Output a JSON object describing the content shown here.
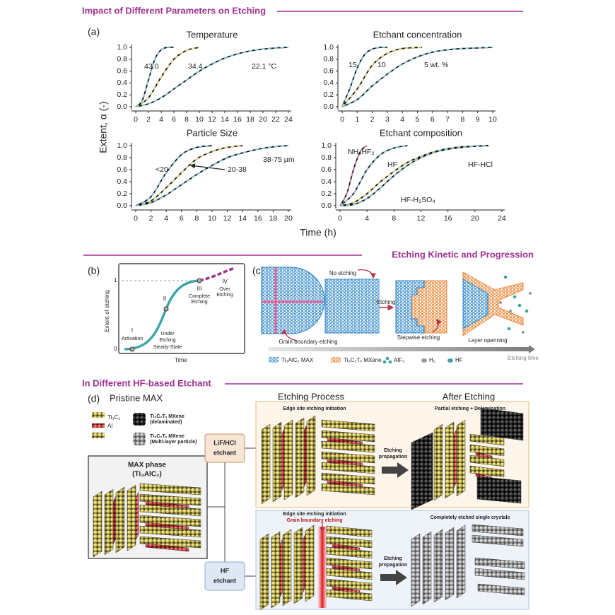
{
  "sections": {
    "top": "Impact of Different Parameters on Etching",
    "middle": "Etching Kinetic and Progression",
    "bottom": "In Different HF-based Etchant"
  },
  "panel_a": {
    "label": "(a)",
    "y_label": "Extent, α (-)",
    "x_label": "Time (h)"
  },
  "chart_data": [
    {
      "type": "line",
      "title": "Temperature",
      "xlim": [
        0,
        24
      ],
      "ylim": [
        0,
        1
      ],
      "xticks": [
        0,
        2,
        4,
        6,
        8,
        10,
        12,
        14,
        16,
        18,
        20,
        22,
        24
      ],
      "yticks": [
        {
          "value": 0,
          "label": "0.0"
        },
        {
          "value": 0.2,
          "label": "0.2"
        },
        {
          "value": 0.4,
          "label": "0.4"
        },
        {
          "value": 0.6,
          "label": "0.6"
        },
        {
          "value": 0.8,
          "label": "0.8"
        },
        {
          "value": 1,
          "label": "1.0"
        }
      ],
      "series": [
        {
          "name": "43.0",
          "color": "#7fd3e0",
          "x": [
            0,
            1,
            2,
            3,
            4,
            5,
            6
          ],
          "values": [
            0,
            0.1,
            0.45,
            0.8,
            0.96,
            1.0,
            1.0
          ]
        },
        {
          "name": "34.4",
          "color": "#f0e27a",
          "x": [
            0,
            2,
            4,
            6,
            8,
            10
          ],
          "values": [
            0,
            0.15,
            0.5,
            0.8,
            0.95,
            1.0
          ]
        },
        {
          "name": "22.1 °C",
          "color": "#7fd3e0",
          "x": [
            0,
            2,
            4,
            6,
            8,
            10,
            12,
            14,
            16,
            18,
            20,
            22,
            24
          ],
          "values": [
            0,
            0.05,
            0.15,
            0.3,
            0.45,
            0.6,
            0.72,
            0.82,
            0.89,
            0.94,
            0.97,
            0.99,
            1.0
          ]
        }
      ]
    },
    {
      "type": "line",
      "title": "Etchant concentration",
      "xlim": [
        0,
        10
      ],
      "ylim": [
        0,
        1
      ],
      "xticks": [
        0,
        1,
        2,
        3,
        4,
        5,
        6,
        7,
        8,
        9,
        10
      ],
      "yticks": [
        {
          "value": 0,
          "label": "0.0"
        },
        {
          "value": 0.2,
          "label": "0.2"
        },
        {
          "value": 0.4,
          "label": "0.4"
        },
        {
          "value": 0.6,
          "label": "0.6"
        },
        {
          "value": 0.8,
          "label": "0.8"
        },
        {
          "value": 1,
          "label": "1.0"
        }
      ],
      "series": [
        {
          "name": "15",
          "color": "#7fd3e0",
          "x": [
            0,
            0.5,
            1,
            1.5,
            2,
            2.5,
            3
          ],
          "values": [
            0,
            0.3,
            0.65,
            0.88,
            0.97,
            1.0,
            1.0
          ]
        },
        {
          "name": "10",
          "color": "#f0e27a",
          "x": [
            0,
            1,
            2,
            3,
            4,
            5.3
          ],
          "values": [
            0,
            0.3,
            0.7,
            0.9,
            0.98,
            1.0
          ]
        },
        {
          "name": "5 wt. %",
          "color": "#7fd3e0",
          "x": [
            0,
            1,
            2,
            3,
            4,
            5,
            6,
            7,
            8,
            9,
            10
          ],
          "values": [
            0,
            0.12,
            0.35,
            0.55,
            0.72,
            0.84,
            0.92,
            0.96,
            0.98,
            0.99,
            1.0
          ]
        }
      ]
    },
    {
      "type": "line",
      "title": "Particle Size",
      "xlim": [
        0,
        20
      ],
      "ylim": [
        0,
        1
      ],
      "xticks": [
        0,
        2,
        4,
        6,
        8,
        10,
        12,
        14,
        16,
        18,
        20
      ],
      "yticks": [
        {
          "value": 0,
          "label": "0.0"
        },
        {
          "value": 0.2,
          "label": "0.2"
        },
        {
          "value": 0.4,
          "label": "0.4"
        },
        {
          "value": 0.6,
          "label": "0.6"
        },
        {
          "value": 0.8,
          "label": "0.8"
        },
        {
          "value": 1,
          "label": "1.0"
        }
      ],
      "series": [
        {
          "name": "<20",
          "color": "#7fd3e0",
          "x": [
            0,
            2,
            4,
            6,
            8,
            10
          ],
          "values": [
            0,
            0.15,
            0.55,
            0.85,
            0.97,
            1.0
          ]
        },
        {
          "name": "20-38",
          "color": "#f0e27a",
          "x": [
            0,
            2,
            4,
            6,
            8,
            10,
            12,
            14
          ],
          "values": [
            0,
            0.08,
            0.3,
            0.55,
            0.78,
            0.9,
            0.97,
            1.0
          ]
        },
        {
          "name": "38-75 µm",
          "color": "#7fd3e0",
          "x": [
            0,
            2,
            4,
            6,
            8,
            10,
            12,
            14,
            16,
            18,
            20
          ],
          "values": [
            0,
            0.05,
            0.18,
            0.35,
            0.52,
            0.67,
            0.8,
            0.88,
            0.94,
            0.98,
            1.0
          ]
        }
      ]
    },
    {
      "type": "line",
      "title": "Etchant composition",
      "xlim": [
        0,
        24
      ],
      "ylim": [
        0,
        1
      ],
      "xticks": [
        0,
        4,
        8,
        12,
        16,
        20,
        24
      ],
      "yticks": [
        {
          "value": 0,
          "label": "0.0"
        },
        {
          "value": 0.2,
          "label": "0.2"
        },
        {
          "value": 0.4,
          "label": "0.4"
        },
        {
          "value": 0.6,
          "label": "0.6"
        },
        {
          "value": 0.8,
          "label": "0.8"
        },
        {
          "value": 1,
          "label": "1.0"
        }
      ],
      "series": [
        {
          "name": "NH₄HF₂",
          "color": "#e07a9a",
          "x": [
            0,
            1,
            2,
            3,
            4
          ],
          "values": [
            0,
            0.2,
            0.6,
            0.9,
            1.0
          ]
        },
        {
          "name": "HF",
          "color": "#7fd3e0",
          "x": [
            0,
            2,
            4,
            6,
            8,
            10
          ],
          "values": [
            0,
            0.2,
            0.6,
            0.85,
            0.96,
            1.0
          ]
        },
        {
          "name": "HF-HCl",
          "color": "#f0e27a",
          "x": [
            0,
            2,
            4,
            6,
            8,
            10,
            12,
            14,
            16,
            18,
            20,
            22
          ],
          "values": [
            0,
            0.05,
            0.2,
            0.4,
            0.57,
            0.72,
            0.82,
            0.9,
            0.95,
            0.98,
            0.99,
            1.0
          ]
        },
        {
          "name": "HF-H₂SO₄",
          "color": "#7fd3e0",
          "x": [
            0,
            2,
            4,
            6,
            8,
            10,
            12,
            14,
            16,
            18,
            20,
            22
          ],
          "values": [
            0,
            0.02,
            0.12,
            0.3,
            0.5,
            0.67,
            0.8,
            0.89,
            0.94,
            0.97,
            0.99,
            1.0
          ]
        }
      ]
    }
  ],
  "panel_b": {
    "label": "(b)",
    "y_label": "Extent of etching",
    "x_label": "Time",
    "y_top": "1",
    "y_bottom": "0",
    "stages": [
      {
        "numeral": "I",
        "text": [
          "Activation"
        ]
      },
      {
        "numeral": "II",
        "text": [
          "Under",
          "Etching",
          "Steady-State"
        ]
      },
      {
        "numeral": "III",
        "text": [
          "Complete",
          "Etching"
        ]
      },
      {
        "numeral": "IV",
        "text": [
          "Over",
          "Etching"
        ]
      }
    ]
  },
  "panel_c": {
    "label": "(c)",
    "no_etching": "No etching",
    "etching": "Etching",
    "grain_boundary": "Grain boundary etching",
    "stepwise": "Stepwise etching",
    "layer_opening": "Layer openning",
    "legend": [
      "Ti₃AlC₂ MAX",
      "Ti₃C₂Tₓ MXene",
      "AlF₃",
      "H₂",
      "HF"
    ],
    "time_axis": "Etching time"
  },
  "panel_d": {
    "label": "(d)",
    "pristine": "Pristine MAX",
    "ti3c2": "Ti₃C₂",
    "al": "Al",
    "delaminated": [
      "Ti₃C₂Tₓ MXene",
      "(delaminated)"
    ],
    "multilayer": [
      "Ti₃C₂Tₓ MXene",
      "(Multi-layer particle)"
    ],
    "max_phase": [
      "MAX phase",
      "(Ti₃AlC₂)"
    ],
    "etchants": [
      [
        "LiF/HCl",
        "etchant"
      ],
      [
        "HF",
        "etchant"
      ]
    ],
    "columns": [
      "Etching Process",
      "After Etching"
    ],
    "lif": {
      "initiation": "Edge site etching initiation",
      "result": "Partial etching + Delamination",
      "arrow": [
        "Etching",
        "propagation"
      ]
    },
    "hf": {
      "initiation": "Edge site etching initiation",
      "grain": "Grain boundary etching",
      "result": "Completely etched single crystals",
      "arrow": [
        "Etching",
        "propagation"
      ]
    }
  }
}
